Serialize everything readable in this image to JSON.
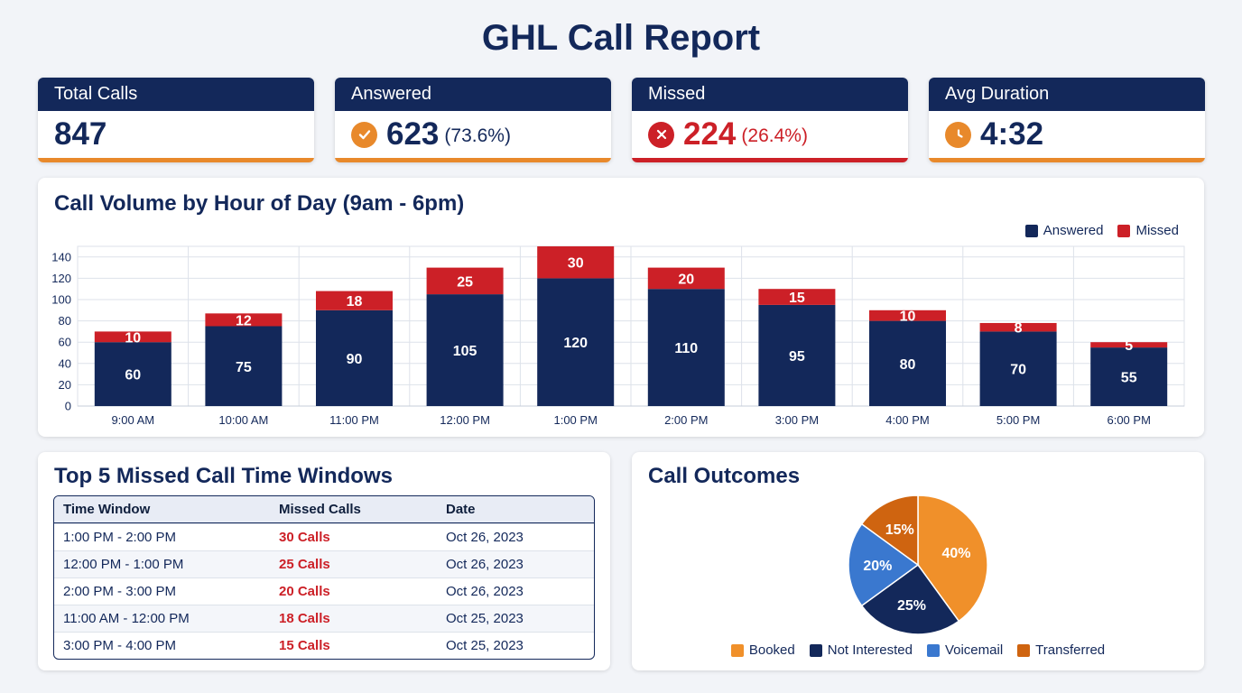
{
  "title": "GHL Call Report",
  "kpis": {
    "total": {
      "label": "Total Calls",
      "value": "847"
    },
    "answered": {
      "label": "Answered",
      "value": "623",
      "pct": "(73.6%)"
    },
    "missed": {
      "label": "Missed",
      "value": "224",
      "pct": "(26.4%)"
    },
    "avg": {
      "label": "Avg Duration",
      "value": "4:32"
    }
  },
  "colors": {
    "navy": "#13285a",
    "red": "#cc2027",
    "orange": "#e8892b",
    "booked": "#f0902a",
    "not_interested": "#13285a",
    "voicemail": "#3a78cf",
    "transferred": "#cf6410"
  },
  "volume_panel": {
    "title": "Call Volume by Hour of Day (9am - 6pm)"
  },
  "table_panel": {
    "title": "Top 5 Missed Call Time Windows",
    "headers": [
      "Time Window",
      "Missed Calls",
      "Date"
    ],
    "rows": [
      [
        "1:00 PM - 2:00 PM",
        "30 Calls",
        "Oct 26, 2023"
      ],
      [
        "12:00 PM - 1:00 PM",
        "25 Calls",
        "Oct 26, 2023"
      ],
      [
        "2:00 PM - 3:00 PM",
        "20 Calls",
        "Oct 26, 2023"
      ],
      [
        "11:00 AM - 12:00 PM",
        "18 Calls",
        "Oct 25, 2023"
      ],
      [
        "3:00 PM - 4:00 PM",
        "15 Calls",
        "Oct 25, 2023"
      ]
    ]
  },
  "outcomes_panel": {
    "title": "Call Outcomes"
  },
  "chart_data": [
    {
      "type": "bar",
      "stacked": true,
      "title": "Call Volume by Hour of Day (9am - 6pm)",
      "categories": [
        "9:00 AM",
        "10:00 AM",
        "11:00 PM",
        "12:00 PM",
        "1:00 PM",
        "2:00 PM",
        "3:00 PM",
        "4:00 PM",
        "5:00 PM",
        "6:00 PM"
      ],
      "series": [
        {
          "name": "Answered",
          "color": "#13285a",
          "values": [
            60,
            75,
            90,
            105,
            120,
            110,
            95,
            80,
            70,
            55
          ]
        },
        {
          "name": "Missed",
          "color": "#cc2027",
          "values": [
            10,
            12,
            18,
            25,
            30,
            20,
            15,
            10,
            8,
            5
          ]
        }
      ],
      "yticks": [
        0,
        20,
        40,
        60,
        80,
        100,
        120,
        140
      ],
      "ylim": [
        0,
        150
      ],
      "grid": true,
      "legend": "top-right"
    },
    {
      "type": "pie",
      "title": "Call Outcomes",
      "labels": [
        "Booked",
        "Not Interested",
        "Voicemail",
        "Transferred"
      ],
      "values": [
        40,
        25,
        20,
        15
      ],
      "display": [
        "40%",
        "25%",
        "20%",
        "15%"
      ],
      "colors": [
        "#f0902a",
        "#13285a",
        "#3a78cf",
        "#cf6410"
      ],
      "legend": "bottom"
    }
  ]
}
